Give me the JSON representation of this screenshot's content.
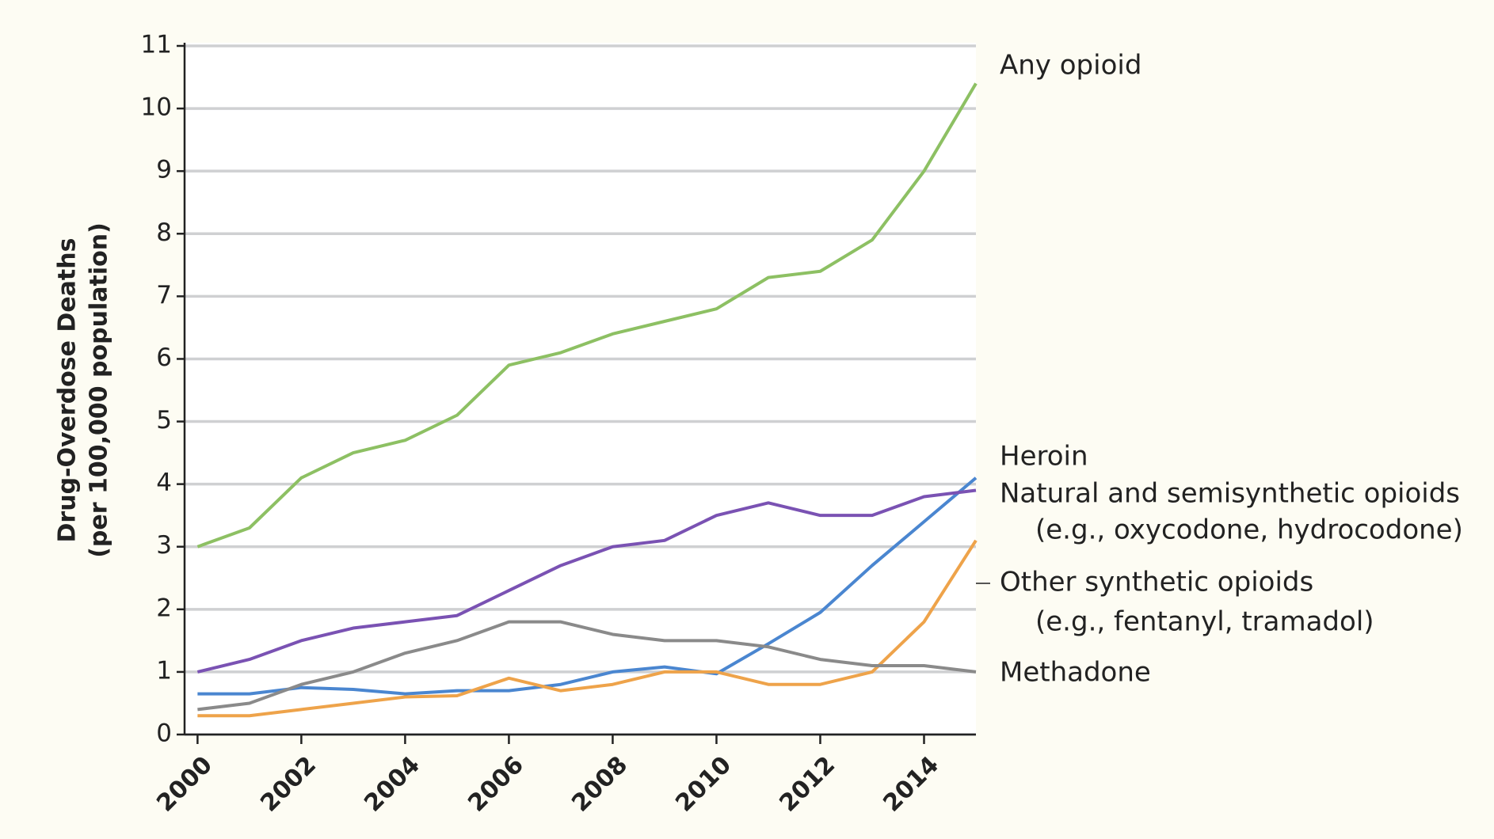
{
  "chart_data": {
    "type": "line",
    "y_label": [
      "Drug-Overdose Deaths",
      "(per 100,000 population)"
    ],
    "x": [
      2000,
      2001,
      2002,
      2003,
      2004,
      2005,
      2006,
      2007,
      2008,
      2009,
      2010,
      2011,
      2012,
      2013,
      2014,
      2015
    ],
    "series": [
      {
        "name": "Any opioid",
        "color": "#8dc063",
        "values": [
          3.0,
          3.3,
          4.1,
          4.5,
          4.7,
          5.1,
          5.9,
          6.1,
          6.4,
          6.6,
          6.8,
          7.3,
          7.4,
          7.9,
          9.0,
          10.4
        ]
      },
      {
        "name": "Heroin",
        "color": "#4a86d0",
        "values": [
          0.65,
          0.65,
          0.75,
          0.72,
          0.65,
          0.7,
          0.7,
          0.8,
          1.0,
          1.08,
          0.97,
          1.45,
          1.95,
          2.7,
          3.4,
          4.1
        ]
      },
      {
        "name": "Natural and semisynthetic opioids",
        "example": "(e.g., oxycodone, hydrocodone)",
        "color": "#7a52b3",
        "values": [
          1.0,
          1.2,
          1.5,
          1.7,
          1.8,
          1.9,
          2.3,
          2.7,
          3.0,
          3.1,
          3.5,
          3.7,
          3.5,
          3.5,
          3.8,
          3.9
        ]
      },
      {
        "name": "Other synthetic opioids",
        "example": "(e.g., fentanyl, tramadol)",
        "color": "#eea34a",
        "values": [
          0.3,
          0.3,
          0.4,
          0.5,
          0.6,
          0.62,
          0.9,
          0.7,
          0.8,
          1.0,
          1.0,
          0.8,
          0.8,
          1.0,
          1.8,
          3.1
        ]
      },
      {
        "name": "Methadone",
        "color": "#8a8a8a",
        "values": [
          0.4,
          0.5,
          0.8,
          1.0,
          1.3,
          1.5,
          1.8,
          1.8,
          1.6,
          1.5,
          1.5,
          1.4,
          1.2,
          1.1,
          1.1,
          1.0
        ]
      }
    ],
    "xlim": [
      1999.75,
      2015
    ],
    "xticks": [
      2000,
      2002,
      2004,
      2006,
      2008,
      2010,
      2012,
      2014
    ],
    "ylim": [
      0,
      11
    ],
    "yticks": [
      0,
      1,
      2,
      3,
      4,
      5,
      6,
      7,
      8,
      9,
      10,
      11
    ],
    "grid": true
  }
}
